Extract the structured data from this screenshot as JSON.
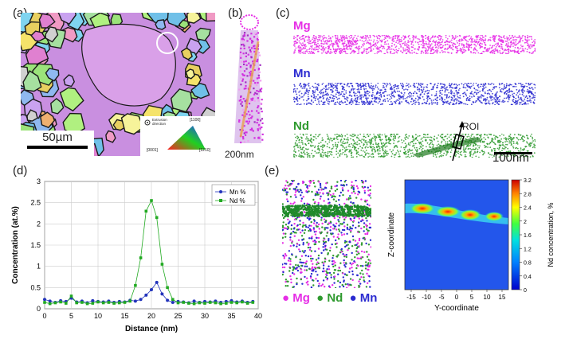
{
  "labels": {
    "a": "(a)",
    "b": "(b)",
    "c": "(c)",
    "d": "(d)",
    "e": "(e)"
  },
  "panel_a": {
    "scale_bar": "50µm",
    "legend": {
      "title": "Extrusion\ndirection",
      "t1100": "[1100]",
      "t0001": "[0001]",
      "t1210": "[1210]"
    }
  },
  "panel_b": {
    "scale_bar": "200nm"
  },
  "panel_c": {
    "elements": [
      {
        "name": "Mg",
        "color": "#e62ee6"
      },
      {
        "name": "Mn",
        "color": "#2b2bd0"
      },
      {
        "name": "Nd",
        "color": "#2f9a2f"
      }
    ],
    "roi": "ROI",
    "scale_bar": "100nm"
  },
  "panel_e": {
    "legend": [
      {
        "name": "Mg",
        "color": "#e62ee6"
      },
      {
        "name": "Nd",
        "color": "#2f9a2f"
      },
      {
        "name": "Mn",
        "color": "#2b2bd0"
      }
    ],
    "heatmap": {
      "xlabel": "Y-coordinate",
      "ylabel": "Z-coordinate",
      "xticks": [
        "-15",
        "-10",
        "-5",
        "0",
        "5",
        "10",
        "15"
      ],
      "colorbar_label": "Nd concentration, %",
      "colorbar_ticks": [
        "0",
        "0.4",
        "0.8",
        "1.2",
        "1.6",
        "2",
        "2.4",
        "2.8",
        "3.2"
      ]
    }
  },
  "chart_data": {
    "type": "line",
    "xlabel": "Distance (nm)",
    "ylabel": "Concentration (at.%)",
    "xlim": [
      0,
      40
    ],
    "ylim": [
      0,
      3
    ],
    "xticks": [
      0,
      5,
      10,
      15,
      20,
      25,
      30,
      35,
      40
    ],
    "yticks": [
      0,
      0.5,
      1,
      1.5,
      2,
      2.5,
      3
    ],
    "ytick_labels": [
      "0",
      "0.5",
      "1",
      "1.5",
      "2",
      "2.5",
      "3"
    ],
    "grid": true,
    "legend_position": "top-right",
    "series": [
      {
        "name": "Mn %",
        "color": "#2233bb",
        "marker": "circle",
        "x": [
          0,
          1,
          2,
          3,
          4,
          5,
          6,
          7,
          8,
          9,
          10,
          11,
          12,
          13,
          14,
          15,
          16,
          17,
          18,
          19,
          20,
          21,
          22,
          23,
          24,
          25,
          26,
          27,
          28,
          29,
          30,
          31,
          32,
          33,
          34,
          35,
          36,
          37,
          38,
          39
        ],
        "y": [
          0.22,
          0.18,
          0.15,
          0.19,
          0.17,
          0.25,
          0.16,
          0.18,
          0.14,
          0.19,
          0.17,
          0.16,
          0.18,
          0.15,
          0.17,
          0.16,
          0.2,
          0.18,
          0.22,
          0.32,
          0.45,
          0.62,
          0.35,
          0.2,
          0.15,
          0.17,
          0.16,
          0.14,
          0.18,
          0.15,
          0.17,
          0.16,
          0.18,
          0.15,
          0.17,
          0.19,
          0.16,
          0.18,
          0.15,
          0.17
        ]
      },
      {
        "name": "Nd %",
        "color": "#22aa22",
        "marker": "square",
        "x": [
          0,
          1,
          2,
          3,
          4,
          5,
          6,
          7,
          8,
          9,
          10,
          11,
          12,
          13,
          14,
          15,
          16,
          17,
          18,
          19,
          20,
          21,
          22,
          23,
          24,
          25,
          26,
          27,
          28,
          29,
          30,
          31,
          32,
          33,
          34,
          35,
          36,
          37,
          38,
          39
        ],
        "y": [
          0.15,
          0.12,
          0.14,
          0.16,
          0.13,
          0.3,
          0.14,
          0.15,
          0.12,
          0.13,
          0.16,
          0.14,
          0.15,
          0.13,
          0.14,
          0.15,
          0.18,
          0.55,
          1.2,
          2.3,
          2.55,
          2.15,
          1.05,
          0.5,
          0.22,
          0.14,
          0.15,
          0.13,
          0.12,
          0.14,
          0.13,
          0.15,
          0.14,
          0.12,
          0.13,
          0.15,
          0.14,
          0.16,
          0.13,
          0.15
        ]
      }
    ]
  }
}
